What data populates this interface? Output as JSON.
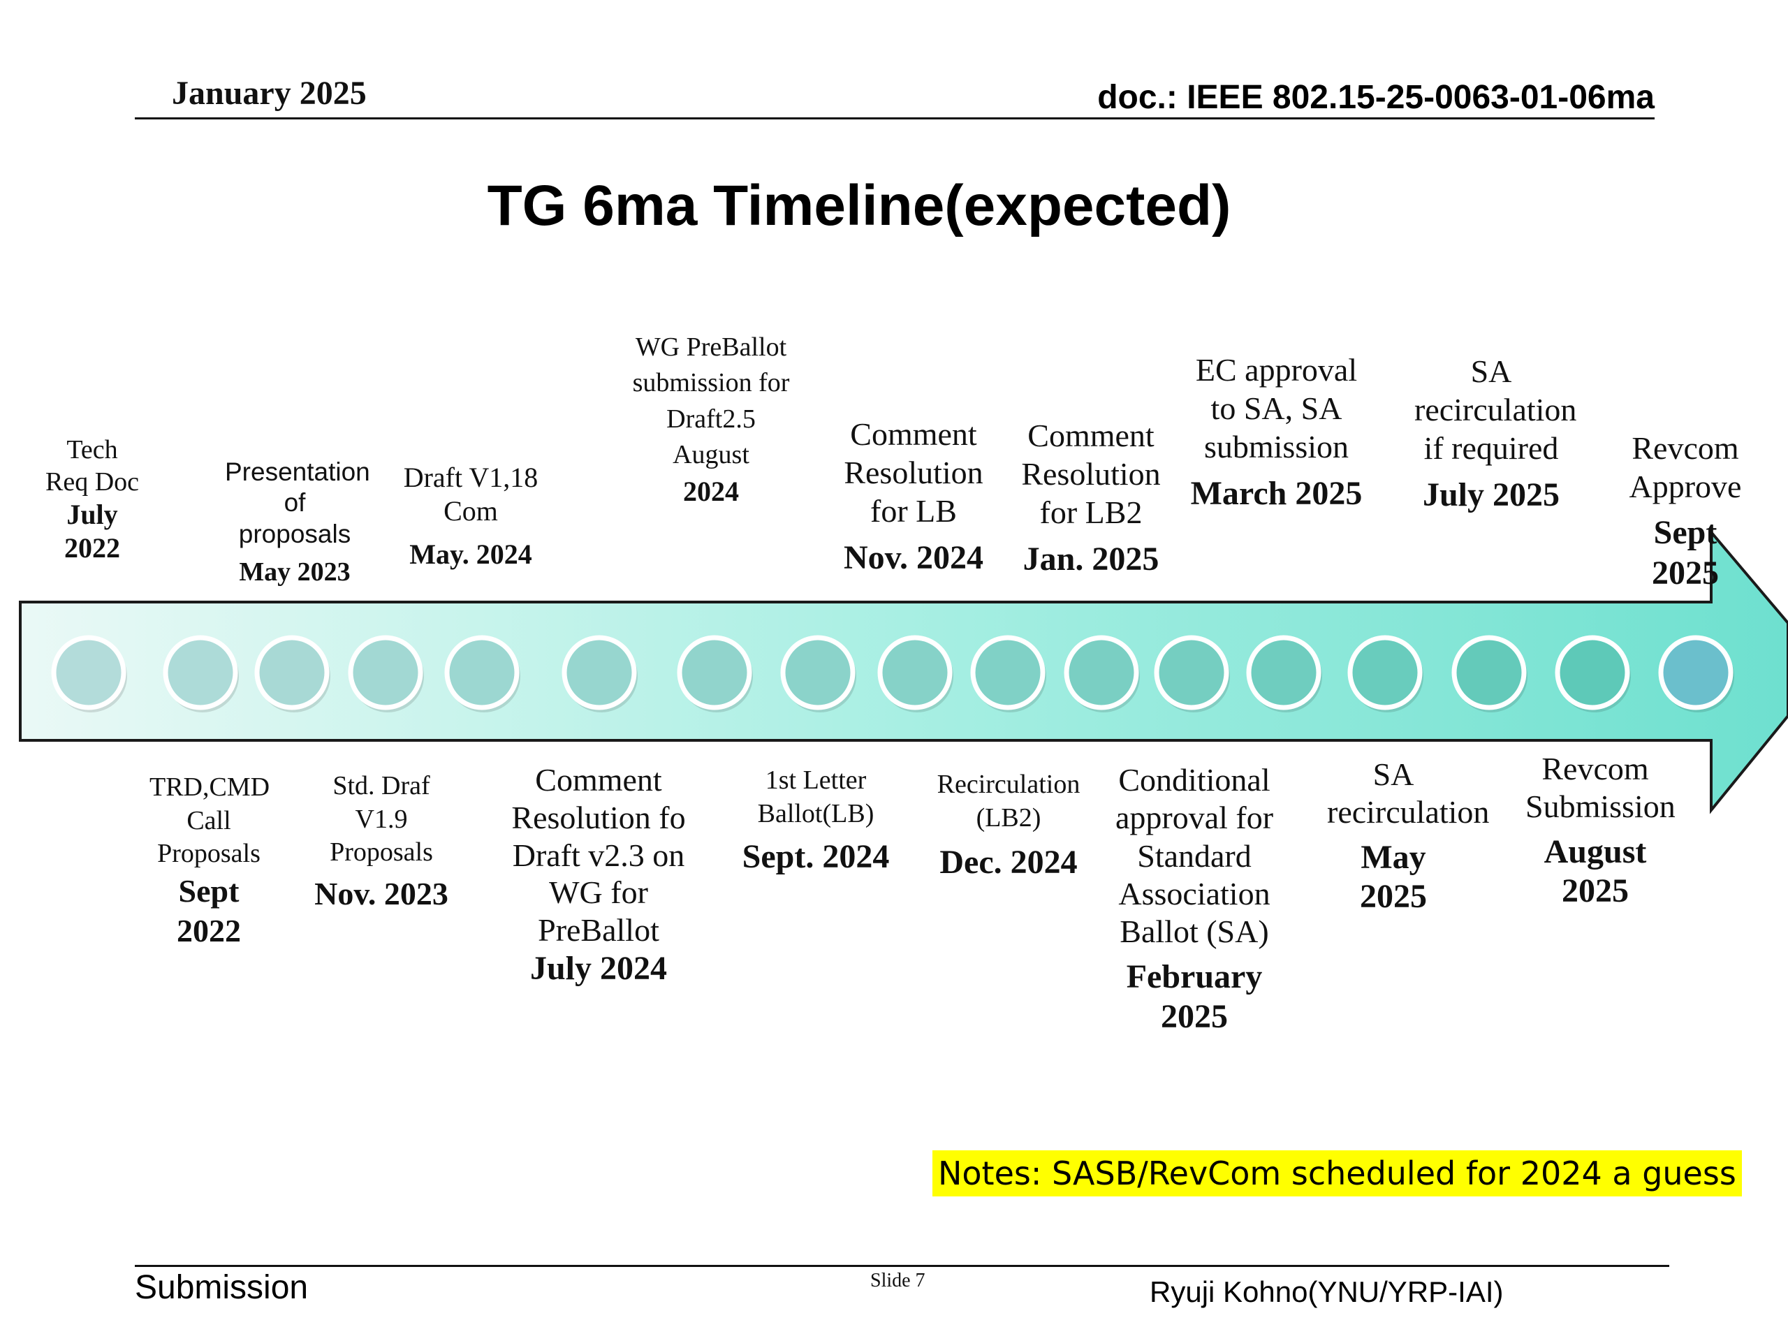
{
  "header": {
    "date": "January 2025",
    "doc_id": "doc.: IEEE 802.15-25-0063-01-06ma"
  },
  "title": "TG 6ma Timeline(expected)",
  "milestones_top": [
    {
      "desc": "Tech Req Doc",
      "date": "July 2022"
    },
    {
      "desc": "Presentation of proposals",
      "date": "May 2023"
    },
    {
      "desc": "Draft V1,18 Com",
      "date": "May. 2024"
    },
    {
      "desc": "WG PreBallot submission for Draft2.5 August",
      "date": "2024"
    },
    {
      "desc": "Comment Resolution for LB",
      "date": "Nov. 2024"
    },
    {
      "desc": "Comment Resolution for LB2",
      "date": "Jan. 2025"
    },
    {
      "desc": "EC approval to SA, SA submission",
      "date": "March 2025"
    },
    {
      "desc": "SA recirculation if required",
      "date": "July 2025"
    },
    {
      "desc": "Revcom Approve",
      "date": "Sept 2025"
    }
  ],
  "milestones_bottom": [
    {
      "desc": "TRD,CMD Call Proposals",
      "date": "Sept 2022"
    },
    {
      "desc": "Std. Draf V1.9 Proposals",
      "date": "Nov. 2023"
    },
    {
      "desc": "Comment Resolution fo Draft v2.3 on WG for PreBallot",
      "date": "July  2024"
    },
    {
      "desc": "1st Letter Ballot(LB)",
      "date": "Sept. 2024"
    },
    {
      "desc": "Recirculation (LB2)",
      "date": "Dec. 2024"
    },
    {
      "desc": "Conditional approval for Standard Association Ballot (SA)",
      "date": "February 2025"
    },
    {
      "desc": "SA recirculation",
      "date": "May 2025"
    },
    {
      "desc": "Revcom Submission",
      "date": "August 2025"
    }
  ],
  "timeline": {
    "marker_count": 17
  },
  "colors": {
    "arrow_start": "#e8f8f5",
    "arrow_end": "#6ee0cf",
    "marker_start": "#b3dcda",
    "marker_end": "#5ec9b8",
    "marker_last": "#6bbfcc",
    "note_highlight": "#ffff00"
  },
  "note": "Notes:  SASB/RevCom scheduled for 2024 a guess",
  "footer": {
    "left": "Submission",
    "center": "Slide 7",
    "right": "Ryuji Kohno(YNU/YRP-IAI)"
  }
}
